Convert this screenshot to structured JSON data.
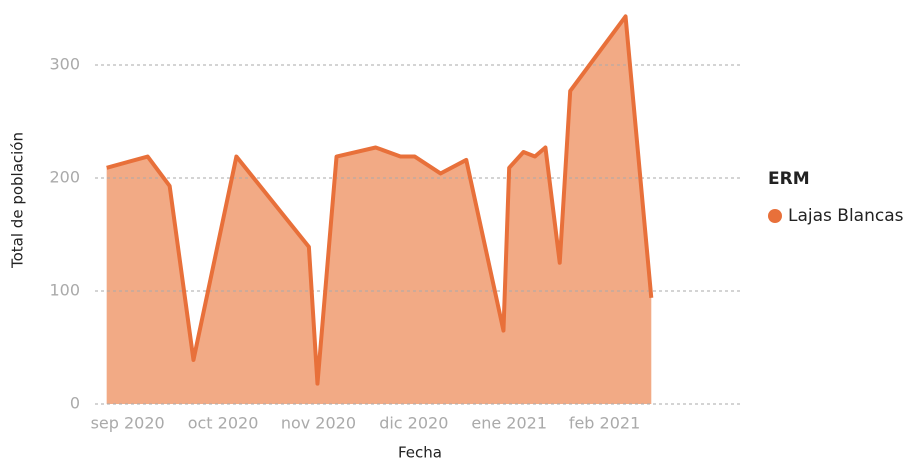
{
  "chart_data": {
    "type": "area",
    "x_label": "Fecha",
    "y_label": "Total de población",
    "x": [
      -0.22,
      0.21,
      0.44,
      0.69,
      1.14,
      1.9,
      1.99,
      2.19,
      2.6,
      2.86,
      3.01,
      3.28,
      3.55,
      3.94,
      4.0,
      4.15,
      4.27,
      4.38,
      4.53,
      4.64,
      5.22,
      5.49
    ],
    "series": [
      {
        "name": "Lajas Blancas",
        "color": "#e8703a",
        "fill": "#f2aa85",
        "values": [
          209,
          219,
          193,
          39,
          219,
          139,
          18,
          219,
          227,
          219,
          219,
          204,
          216,
          65,
          209,
          223,
          219,
          227,
          125,
          277,
          343,
          94
        ]
      }
    ],
    "xlim": [
      -0.29,
      6.42
    ],
    "xticks": [
      {
        "value": 0,
        "label": "sep 2020"
      },
      {
        "value": 1,
        "label": "oct 2020"
      },
      {
        "value": 2,
        "label": "nov 2020"
      },
      {
        "value": 3,
        "label": "dic 2020"
      },
      {
        "value": 4,
        "label": "ene 2021"
      },
      {
        "value": 5,
        "label": "feb 2021"
      }
    ],
    "ylim": [
      0,
      350
    ],
    "yticks": [
      0,
      100,
      200,
      300
    ],
    "grid": true,
    "legend": {
      "title": "ERM",
      "position": "right"
    }
  }
}
